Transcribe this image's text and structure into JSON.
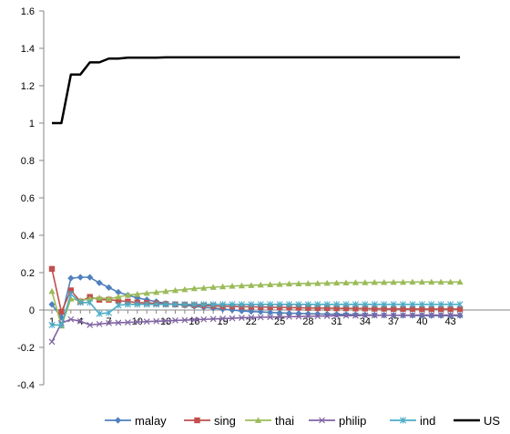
{
  "chart_data": {
    "type": "line",
    "title": "",
    "xlabel": "",
    "ylabel": "",
    "ylim": [
      -0.4,
      1.6
    ],
    "yticks": [
      "-0.4",
      "-0.2",
      "0",
      "0.2",
      "0.4",
      "0.6",
      "0.8",
      "1",
      "1.2",
      "1.4",
      "1.6"
    ],
    "ytick_values": [
      -0.4,
      -0.2,
      0,
      0.2,
      0.4,
      0.6,
      0.8,
      1,
      1.2,
      1.4,
      1.6
    ],
    "xticks": [
      "1",
      "4",
      "7",
      "10",
      "13",
      "16",
      "19",
      "22",
      "25",
      "28",
      "31",
      "34",
      "37",
      "40",
      "43"
    ],
    "x": [
      1,
      2,
      3,
      4,
      5,
      6,
      7,
      8,
      9,
      10,
      11,
      12,
      13,
      14,
      15,
      16,
      17,
      18,
      19,
      20,
      21,
      22,
      23,
      24,
      25,
      26,
      27,
      28,
      29,
      30,
      31,
      32,
      33,
      34,
      35,
      36,
      37,
      38,
      39,
      40,
      41,
      42,
      43,
      44
    ],
    "grid": false,
    "legend_position": "bottom",
    "series": [
      {
        "name": "malay",
        "color": "#4F81BD",
        "marker": "diamond",
        "values": [
          0.03,
          -0.04,
          0.17,
          0.175,
          0.175,
          0.145,
          0.12,
          0.095,
          0.08,
          0.065,
          0.055,
          0.045,
          0.035,
          0.03,
          0.025,
          0.02,
          0.015,
          0.01,
          0.005,
          0.0,
          -0.005,
          -0.008,
          -0.01,
          -0.013,
          -0.015,
          -0.017,
          -0.018,
          -0.02,
          -0.021,
          -0.022,
          -0.023,
          -0.024,
          -0.025,
          -0.026,
          -0.027,
          -0.028,
          -0.028,
          -0.029,
          -0.029,
          -0.03,
          -0.03,
          -0.03,
          -0.03,
          -0.03
        ]
      },
      {
        "name": "sing",
        "color": "#C0504D",
        "marker": "square",
        "values": [
          0.22,
          -0.01,
          0.105,
          0.045,
          0.07,
          0.055,
          0.055,
          0.05,
          0.045,
          0.04,
          0.038,
          0.035,
          0.032,
          0.03,
          0.028,
          0.026,
          0.024,
          0.022,
          0.02,
          0.019,
          0.018,
          0.017,
          0.016,
          0.015,
          0.014,
          0.013,
          0.012,
          0.011,
          0.01,
          0.01,
          0.009,
          0.009,
          0.008,
          0.008,
          0.007,
          0.007,
          0.006,
          0.006,
          0.006,
          0.005,
          0.005,
          0.005,
          0.005,
          0.005
        ]
      },
      {
        "name": "thai",
        "color": "#9BBB59",
        "marker": "triangle",
        "values": [
          0.1,
          -0.085,
          0.06,
          0.05,
          0.06,
          0.065,
          0.06,
          0.07,
          0.08,
          0.085,
          0.09,
          0.095,
          0.1,
          0.105,
          0.11,
          0.115,
          0.118,
          0.122,
          0.125,
          0.128,
          0.13,
          0.132,
          0.134,
          0.136,
          0.138,
          0.14,
          0.141,
          0.142,
          0.143,
          0.144,
          0.145,
          0.146,
          0.147,
          0.147,
          0.148,
          0.148,
          0.149,
          0.149,
          0.15,
          0.15,
          0.15,
          0.15,
          0.15,
          0.15
        ]
      },
      {
        "name": "philip",
        "color": "#8064A2",
        "marker": "x",
        "values": [
          -0.17,
          -0.07,
          -0.05,
          -0.06,
          -0.08,
          -0.075,
          -0.07,
          -0.068,
          -0.066,
          -0.064,
          -0.062,
          -0.06,
          -0.058,
          -0.056,
          -0.054,
          -0.052,
          -0.05,
          -0.048,
          -0.046,
          -0.044,
          -0.042,
          -0.04,
          -0.039,
          -0.038,
          -0.037,
          -0.036,
          -0.035,
          -0.034,
          -0.033,
          -0.032,
          -0.031,
          -0.03,
          -0.03,
          -0.029,
          -0.029,
          -0.028,
          -0.028,
          -0.028,
          -0.027,
          -0.027,
          -0.027,
          -0.027,
          -0.027,
          -0.027
        ]
      },
      {
        "name": "ind",
        "color": "#4BACC6",
        "marker": "star",
        "values": [
          -0.08,
          -0.08,
          0.085,
          0.04,
          0.04,
          -0.02,
          -0.015,
          0.025,
          0.03,
          0.03,
          0.03,
          0.03,
          0.03,
          0.03,
          0.03,
          0.03,
          0.03,
          0.03,
          0.03,
          0.03,
          0.03,
          0.03,
          0.03,
          0.03,
          0.03,
          0.03,
          0.03,
          0.03,
          0.03,
          0.03,
          0.03,
          0.03,
          0.03,
          0.03,
          0.03,
          0.03,
          0.03,
          0.03,
          0.03,
          0.03,
          0.03,
          0.03,
          0.03,
          0.03
        ]
      },
      {
        "name": "US",
        "color": "#000000",
        "marker": "none",
        "values": [
          1.0,
          1.0,
          1.26,
          1.26,
          1.325,
          1.325,
          1.345,
          1.345,
          1.35,
          1.35,
          1.35,
          1.35,
          1.352,
          1.352,
          1.352,
          1.352,
          1.352,
          1.352,
          1.352,
          1.352,
          1.352,
          1.352,
          1.352,
          1.352,
          1.352,
          1.352,
          1.352,
          1.352,
          1.352,
          1.352,
          1.352,
          1.352,
          1.352,
          1.352,
          1.352,
          1.352,
          1.352,
          1.352,
          1.352,
          1.352,
          1.352,
          1.352,
          1.352,
          1.352
        ]
      }
    ]
  }
}
